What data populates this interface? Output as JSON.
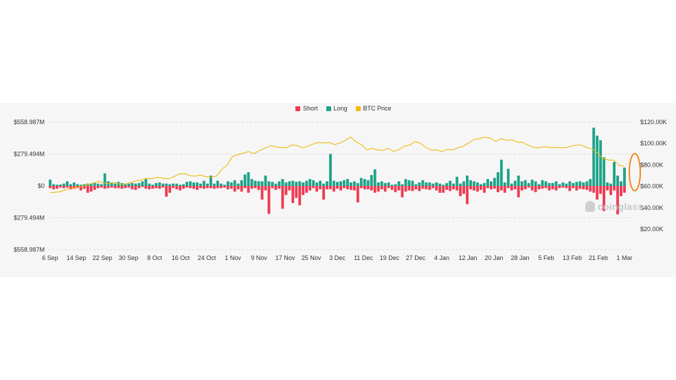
{
  "legend": {
    "short_label": "Short",
    "long_label": "Long",
    "price_label": "BTC Price"
  },
  "watermark": "coinglass",
  "colors": {
    "short": "#ef3b53",
    "long": "#1fa38a",
    "price": "#f0b90b",
    "highlight": "#f08a1d"
  },
  "chart_data": {
    "type": "bar",
    "title": "",
    "left_axis": {
      "ticks": [
        "$558.987M",
        "$279.494M",
        "$0",
        "$279.494M",
        "$558.987M"
      ],
      "values": [
        558.987,
        279.494,
        0,
        -279.494,
        -558.987
      ],
      "range": [
        -558.987,
        558.987
      ],
      "unit": "USD millions"
    },
    "right_axis": {
      "ticks": [
        "$120.00K",
        "$100.00K",
        "$80.00K",
        "$60.00K",
        "$40.00K",
        "$20.00K"
      ],
      "values": [
        120000,
        100000,
        80000,
        60000,
        40000,
        20000
      ],
      "range": [
        0,
        135000
      ],
      "unit": "USD"
    },
    "x_tick_labels": [
      "6 Sep",
      "14 Sep",
      "22 Sep",
      "30 Sep",
      "8 Oct",
      "16 Oct",
      "24 Oct",
      "1 Nov",
      "9 Nov",
      "17 Nov",
      "25 Nov",
      "3 Dec",
      "11 Dec",
      "19 Dec",
      "27 Dec",
      "4 Jan",
      "12 Jan",
      "20 Jan",
      "28 Jan",
      "5 Feb",
      "13 Feb",
      "21 Feb",
      "1 Mar"
    ],
    "x_tick_dates": [
      "2024-09-06",
      "2024-09-14",
      "2024-09-22",
      "2024-09-30",
      "2024-10-08",
      "2024-10-16",
      "2024-10-24",
      "2024-11-01",
      "2024-11-09",
      "2024-11-17",
      "2024-11-25",
      "2024-12-03",
      "2024-12-11",
      "2024-12-19",
      "2024-12-27",
      "2025-01-04",
      "2025-01-12",
      "2025-01-20",
      "2025-01-28",
      "2025-02-05",
      "2025-02-13",
      "2025-02-21",
      "2025-03-01"
    ],
    "start_date": "2024-09-06",
    "grid": true,
    "legend_position": "top-center",
    "series": [
      {
        "name": "Long",
        "values": [
          55,
          15,
          10,
          12,
          20,
          40,
          15,
          30,
          15,
          10,
          15,
          20,
          18,
          25,
          20,
          15,
          110,
          40,
          30,
          20,
          35,
          25,
          20,
          20,
          25,
          20,
          25,
          40,
          60,
          20,
          10,
          25,
          30,
          20,
          20,
          15,
          20,
          20,
          10,
          15,
          35,
          40,
          30,
          30,
          20,
          45,
          20,
          90,
          20,
          45,
          20,
          10,
          40,
          30,
          50,
          20,
          50,
          100,
          120,
          60,
          45,
          40,
          40,
          90,
          40,
          35,
          20,
          40,
          60,
          30,
          40,
          45,
          35,
          40,
          30,
          45,
          60,
          50,
          30,
          45,
          20,
          40,
          280,
          45,
          35,
          40,
          50,
          60,
          30,
          40,
          25,
          70,
          60,
          50,
          95,
          145,
          30,
          40,
          25,
          30,
          10,
          15,
          40,
          15,
          60,
          50,
          45,
          15,
          30,
          50,
          30,
          30,
          20,
          30,
          20,
          10,
          25,
          45,
          20,
          80,
          20,
          40,
          90,
          50,
          40,
          30,
          15,
          25,
          60,
          40,
          70,
          120,
          230,
          30,
          150,
          20,
          45,
          90,
          40,
          50,
          25,
          55,
          40,
          15,
          50,
          40,
          25,
          25,
          40,
          15,
          30,
          20,
          40,
          25,
          35,
          40,
          30,
          40,
          60,
          510,
          440,
          400,
          250,
          30,
          20,
          210,
          90,
          40,
          160
        ],
        "color": "#1fa38a"
      },
      {
        "name": "Short",
        "values": [
          20,
          30,
          25,
          15,
          20,
          15,
          30,
          25,
          20,
          40,
          25,
          60,
          50,
          35,
          20,
          15,
          25,
          20,
          15,
          20,
          20,
          25,
          20,
          15,
          30,
          35,
          20,
          10,
          25,
          30,
          25,
          20,
          25,
          15,
          95,
          60,
          20,
          30,
          40,
          25,
          15,
          20,
          25,
          35,
          20,
          25,
          20,
          20,
          25,
          20,
          20,
          15,
          30,
          25,
          50,
          30,
          50,
          20,
          60,
          25,
          20,
          35,
          120,
          40,
          245,
          20,
          35,
          25,
          200,
          80,
          40,
          150,
          105,
          170,
          80,
          60,
          40,
          20,
          50,
          30,
          120,
          30,
          30,
          50,
          25,
          40,
          20,
          30,
          35,
          40,
          145,
          20,
          30,
          30,
          40,
          60,
          50,
          30,
          50,
          20,
          35,
          55,
          40,
          100,
          50,
          40,
          45,
          30,
          45,
          25,
          30,
          35,
          20,
          40,
          60,
          60,
          35,
          45,
          30,
          40,
          90,
          70,
          160,
          30,
          40,
          50,
          35,
          60,
          20,
          30,
          25,
          55,
          40,
          60,
          20,
          40,
          30,
          100,
          40,
          30,
          15,
          40,
          55,
          30,
          25,
          20,
          40,
          30,
          40,
          20,
          15,
          20,
          45,
          20,
          40,
          25,
          30,
          35,
          50,
          60,
          120,
          70,
          220,
          40,
          80,
          40,
          250,
          90,
          60
        ],
        "color": "#ef3b53"
      },
      {
        "name": "BTC Price",
        "values": [
          54000,
          54500,
          55000,
          57000,
          58500,
          59000,
          60000,
          61500,
          63000,
          64500,
          63000,
          62500,
          63500,
          62000,
          62000,
          63500,
          65000,
          66000,
          67500,
          67000,
          68500,
          67500,
          67000,
          69000,
          71500,
          72000,
          70000,
          69500,
          70500,
          69000,
          68500,
          69500,
          76000,
          80000,
          88000,
          89500,
          91000,
          92500,
          90500,
          93500,
          95500,
          98000,
          97000,
          96000,
          96000,
          98500,
          98000,
          96000,
          97500,
          99500,
          101000,
          100500,
          101000,
          99000,
          100500,
          103000,
          106000,
          101500,
          99000,
          94000,
          95500,
          94000,
          93500,
          95500,
          92500,
          94500,
          97500,
          98500,
          102000,
          100000,
          96500,
          94000,
          94000,
          92500,
          94500,
          94000,
          96000,
          97500,
          100500,
          104000,
          104500,
          106000,
          105000,
          102000,
          104500,
          103000,
          103500,
          101500,
          101000,
          98500,
          96500,
          96000,
          97000,
          96500,
          96000,
          96000,
          96000,
          97500,
          98500,
          98500,
          96000,
          95000,
          91000,
          86000,
          84500,
          84500,
          79500,
          79000
        ],
        "color": "#f0b90b"
      }
    ]
  }
}
